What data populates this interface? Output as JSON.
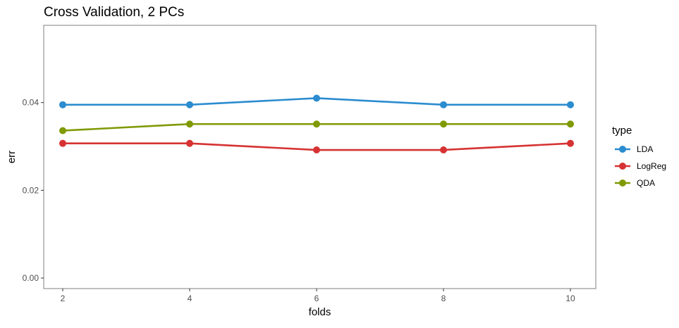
{
  "chart_data": {
    "type": "line",
    "title": "Cross Validation, 2 PCs",
    "xlabel": "folds",
    "ylabel": "err",
    "x": [
      2,
      4,
      6,
      8,
      10
    ],
    "x_ticks": [
      "2",
      "4",
      "6",
      "8",
      "10"
    ],
    "y_ticks": [
      {
        "value": 0.0,
        "label": "0.00"
      },
      {
        "value": 0.02,
        "label": "0.02"
      },
      {
        "value": 0.04,
        "label": "0.04"
      }
    ],
    "xlim": [
      1.7,
      10.4
    ],
    "ylim": [
      -0.0024,
      0.0576
    ],
    "grid": false,
    "legend": {
      "title": "type",
      "position": "right"
    },
    "series": [
      {
        "name": "LDA",
        "color": "#2b8ccf",
        "values": [
          0.0395,
          0.0395,
          0.041,
          0.0395,
          0.0395
        ]
      },
      {
        "name": "LogReg",
        "color": "#d63232",
        "values": [
          0.0307,
          0.0307,
          0.0292,
          0.0292,
          0.0307
        ]
      },
      {
        "name": "QDA",
        "color": "#7f9a05",
        "values": [
          0.0336,
          0.0351,
          0.0351,
          0.0351,
          0.0351
        ]
      }
    ]
  }
}
